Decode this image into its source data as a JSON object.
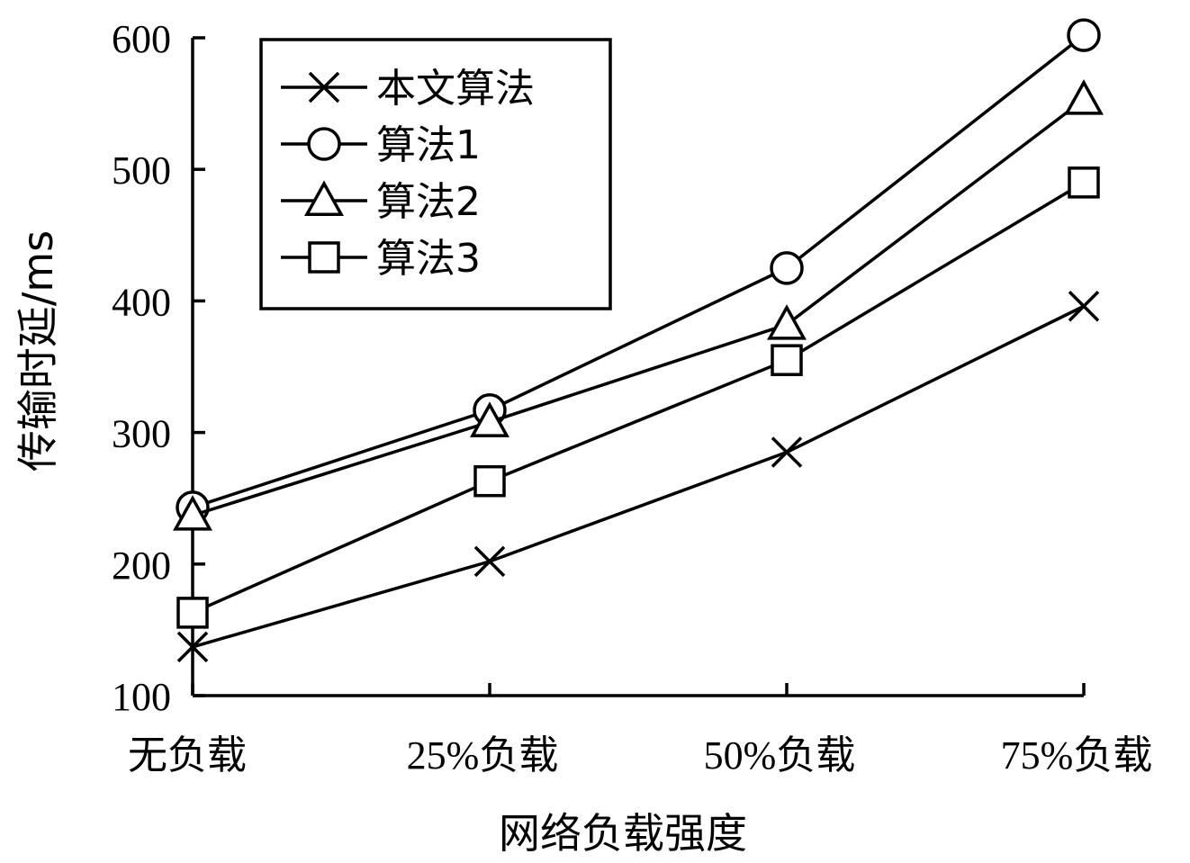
{
  "chart_data": {
    "type": "line",
    "categories": [
      "无负载",
      "25%负载",
      "50%负载",
      "75%负载"
    ],
    "xlabel": "网络负载强度",
    "ylabel": "传输时延/ms",
    "ylim": [
      100,
      600
    ],
    "yticks": [
      100,
      200,
      300,
      400,
      500,
      600
    ],
    "grid": false,
    "legend_position": "top-left",
    "series": [
      {
        "name": "本文算法",
        "marker": "x",
        "values": [
          137,
          202,
          285,
          396
        ]
      },
      {
        "name": "算法1",
        "marker": "circle",
        "values": [
          243,
          317,
          425,
          602
        ]
      },
      {
        "name": "算法2",
        "marker": "triangle",
        "values": [
          237,
          308,
          382,
          553
        ]
      },
      {
        "name": "算法3",
        "marker": "square",
        "values": [
          163,
          263,
          355,
          490
        ]
      }
    ]
  }
}
